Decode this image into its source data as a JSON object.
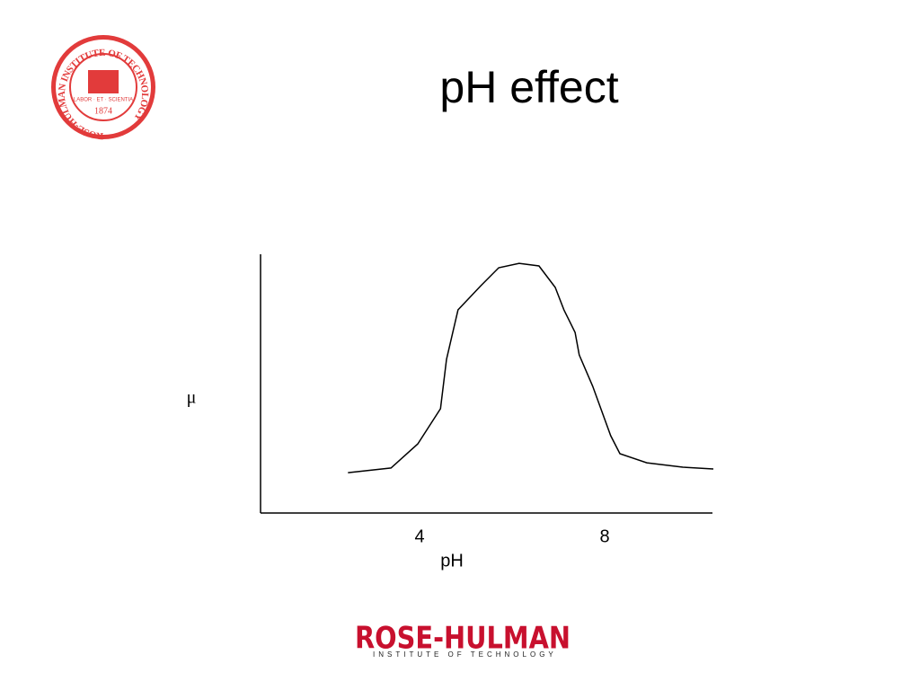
{
  "chart_data": {
    "type": "line",
    "title": "pH effect",
    "x_label": "pH",
    "y_label": "μ",
    "x": [
      2.45,
      3.38,
      3.96,
      4.45,
      4.58,
      4.83,
      5.32,
      5.71,
      6.15,
      6.58,
      6.93,
      7.12,
      7.36,
      7.45,
      7.74,
      8.13,
      8.33,
      8.91,
      9.69,
      10.35
    ],
    "values": [
      0.156,
      0.174,
      0.267,
      0.403,
      0.594,
      0.785,
      0.878,
      0.948,
      0.965,
      0.955,
      0.872,
      0.785,
      0.698,
      0.611,
      0.49,
      0.299,
      0.229,
      0.194,
      0.177,
      0.17
    ],
    "color": "#000000",
    "xlim": [
      0.56,
      10.33
    ],
    "xticks": [
      4,
      8
    ],
    "ylim": [
      0,
      1
    ],
    "grid": false
  },
  "logos": {
    "seal_text": "ROSE-HULMAN INSTITUTE OF TECHNOLOGY",
    "seal_motto": "LABOR · ET · SCIENTIA",
    "seal_year": "1874",
    "wordmark": "ROSE-HULMAN",
    "wordmark_sub": "INSTITUTE OF TECHNOLOGY"
  }
}
